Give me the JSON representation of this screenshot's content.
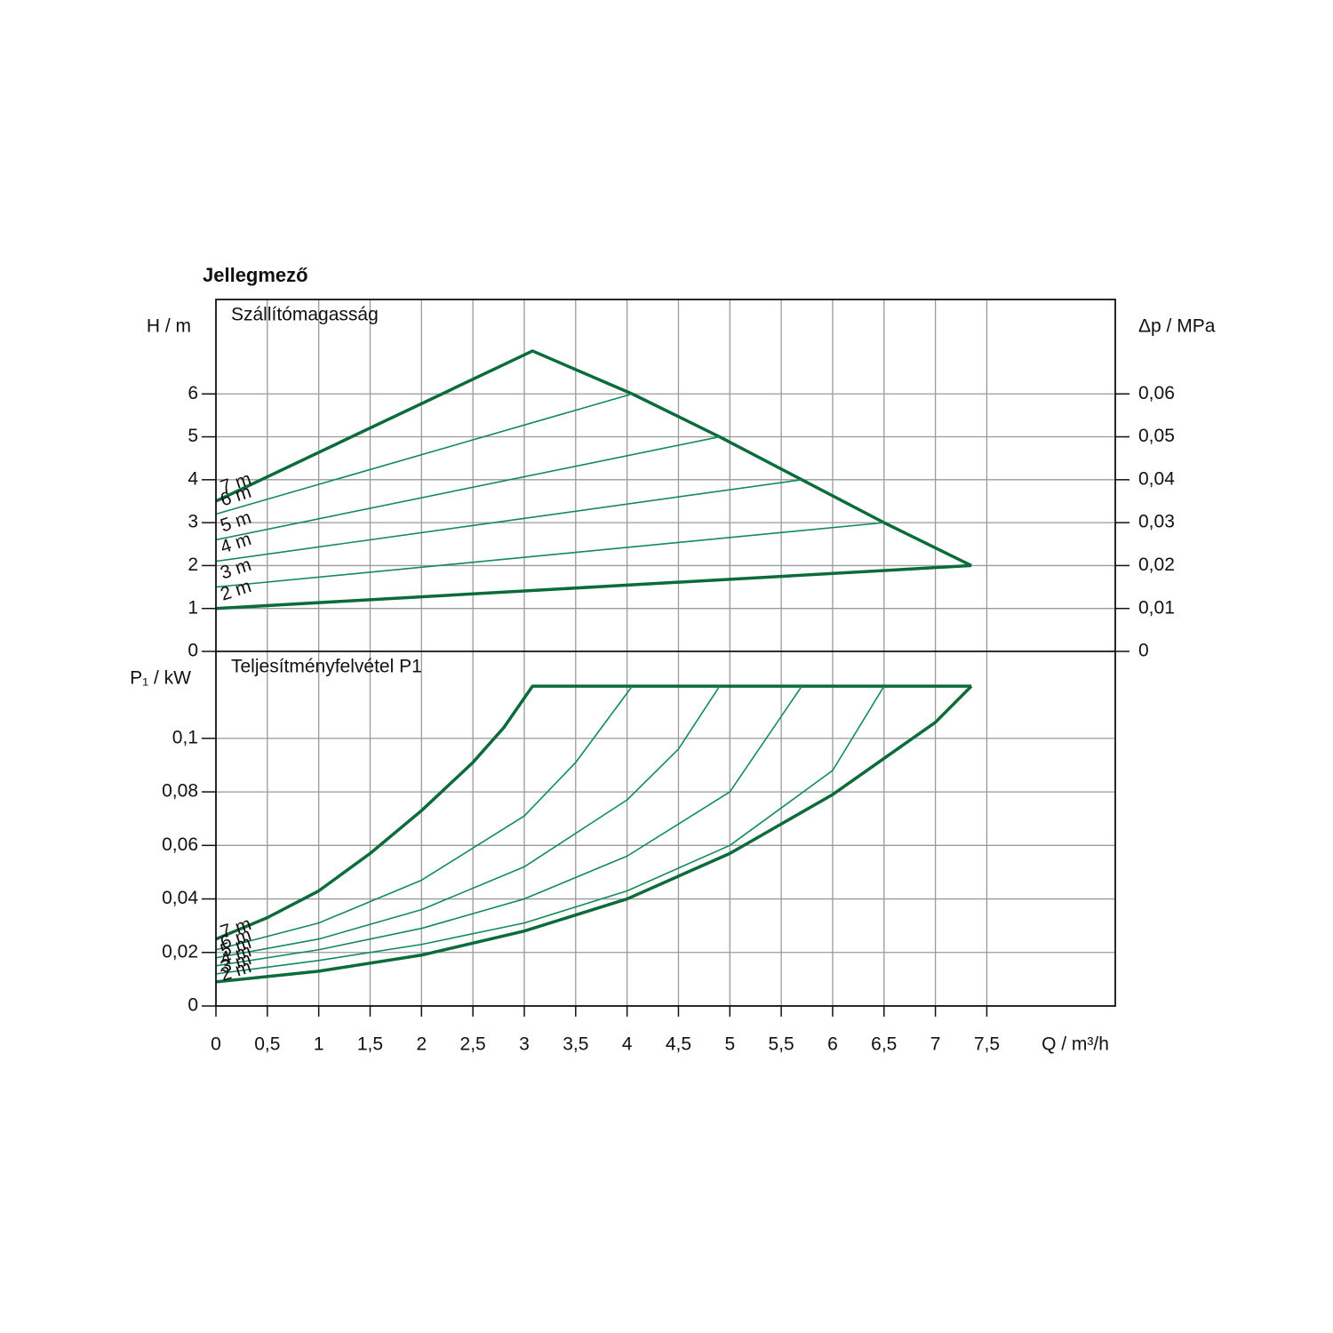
{
  "title": "Jellegmező",
  "chart_data": [
    {
      "type": "line",
      "subtitle": "Szállítómagasság",
      "ylabel": "H / m",
      "y2label": "Δp / MPa",
      "xlim": [
        0,
        8.75
      ],
      "xticks": [
        0,
        {
          "value": 0.5,
          "label": "0,5"
        },
        1,
        {
          "value": 1.5,
          "label": "1,5"
        },
        2,
        {
          "value": 2.5,
          "label": "2,5"
        },
        3,
        {
          "value": 3.5,
          "label": "3,5"
        },
        4,
        {
          "value": 4.5,
          "label": "4,5"
        },
        5,
        {
          "value": 5.5,
          "label": "5,5"
        },
        6,
        {
          "value": 6.5,
          "label": "6,5"
        },
        7,
        {
          "value": 7.5,
          "label": "7,5"
        }
      ],
      "ylim": [
        0,
        8.2
      ],
      "yticks": [
        0,
        1,
        2,
        3,
        4,
        5,
        6
      ],
      "y2lim": [
        0,
        0.082
      ],
      "y2ticks": [
        0,
        {
          "value": 0.01,
          "label": "0,01"
        },
        {
          "value": 0.02,
          "label": "0,02"
        },
        {
          "value": 0.03,
          "label": "0,03"
        },
        {
          "value": 0.04,
          "label": "0,04"
        },
        {
          "value": 0.05,
          "label": "0,05"
        },
        {
          "value": 0.06,
          "label": "0,06"
        }
      ],
      "grid": true,
      "series": [
        {
          "name": "7 m",
          "color": "#0b6b3a",
          "linewidth": 3.5,
          "x": [
            0,
            3.08,
            4.05,
            4.9,
            5.7,
            6.5,
            7.35
          ],
          "values": [
            3.5,
            7,
            6,
            5,
            4,
            3,
            2
          ]
        },
        {
          "name": "6 m",
          "color": "#128a5c",
          "linewidth": 1.6,
          "x": [
            0,
            4.05
          ],
          "values": [
            3.2,
            6
          ]
        },
        {
          "name": "5 m",
          "color": "#128a5c",
          "linewidth": 1.6,
          "x": [
            0,
            4.9
          ],
          "values": [
            2.6,
            5
          ]
        },
        {
          "name": "4 m",
          "color": "#128a5c",
          "linewidth": 1.6,
          "x": [
            0,
            5.7
          ],
          "values": [
            2.1,
            4
          ]
        },
        {
          "name": "3 m",
          "color": "#128a5c",
          "linewidth": 1.6,
          "x": [
            0,
            6.5
          ],
          "values": [
            1.5,
            3
          ]
        },
        {
          "name": "2 m",
          "color": "#0b6b3a",
          "linewidth": 3.5,
          "x": [
            0,
            7.35
          ],
          "values": [
            1,
            2
          ]
        }
      ]
    },
    {
      "type": "line",
      "subtitle": "Teljesítményfelvétel P1",
      "ylabel": "P₁ / kW",
      "xlabel": "Q / m³/h",
      "xlim": [
        0,
        8.75
      ],
      "xticks": [
        0,
        {
          "value": 0.5,
          "label": "0,5"
        },
        1,
        {
          "value": 1.5,
          "label": "1,5"
        },
        2,
        {
          "value": 2.5,
          "label": "2,5"
        },
        3,
        {
          "value": 3.5,
          "label": "3,5"
        },
        4,
        {
          "value": 4.5,
          "label": "4,5"
        },
        5,
        {
          "value": 5.5,
          "label": "5,5"
        },
        6,
        {
          "value": 6.5,
          "label": "6,5"
        },
        7,
        {
          "value": 7.5,
          "label": "7,5"
        }
      ],
      "ylim": [
        0,
        0.1325
      ],
      "yticks": [
        0,
        {
          "value": 0.02,
          "label": "0,02"
        },
        {
          "value": 0.04,
          "label": "0,04"
        },
        {
          "value": 0.06,
          "label": "0,06"
        },
        {
          "value": 0.08,
          "label": "0,08"
        },
        {
          "value": 0.1,
          "label": "0,1"
        }
      ],
      "grid": true,
      "series": [
        {
          "name": "7 m",
          "color": "#0b6b3a",
          "linewidth": 3.5,
          "x": [
            0,
            0.5,
            1,
            1.5,
            2,
            2.5,
            2.8,
            3.08,
            7.35
          ],
          "values": [
            0.025,
            0.033,
            0.043,
            0.057,
            0.073,
            0.091,
            0.104,
            0.1195,
            0.1195
          ]
        },
        {
          "name": "6 m",
          "color": "#128a5c",
          "linewidth": 1.6,
          "x": [
            0,
            1,
            2,
            3,
            3.5,
            4.05
          ],
          "values": [
            0.021,
            0.031,
            0.047,
            0.071,
            0.091,
            0.1195
          ]
        },
        {
          "name": "5 m",
          "color": "#128a5c",
          "linewidth": 1.6,
          "x": [
            0,
            1,
            2,
            3,
            4,
            4.5,
            4.9
          ],
          "values": [
            0.018,
            0.025,
            0.036,
            0.052,
            0.077,
            0.096,
            0.1195
          ]
        },
        {
          "name": "4 m",
          "color": "#128a5c",
          "linewidth": 1.6,
          "x": [
            0,
            1,
            2,
            3,
            4,
            5,
            5.7
          ],
          "values": [
            0.015,
            0.021,
            0.029,
            0.04,
            0.056,
            0.08,
            0.1195
          ]
        },
        {
          "name": "3 m",
          "color": "#128a5c",
          "linewidth": 1.6,
          "x": [
            0,
            1,
            2,
            3,
            4,
            5,
            6,
            6.5
          ],
          "values": [
            0.012,
            0.017,
            0.023,
            0.031,
            0.043,
            0.06,
            0.088,
            0.1195
          ]
        },
        {
          "name": "2 m",
          "color": "#0b6b3a",
          "linewidth": 3.5,
          "x": [
            0,
            1,
            2,
            3,
            4,
            5,
            6,
            7,
            7.35
          ],
          "values": [
            0.009,
            0.013,
            0.019,
            0.028,
            0.04,
            0.057,
            0.079,
            0.106,
            0.1195
          ]
        }
      ]
    }
  ]
}
